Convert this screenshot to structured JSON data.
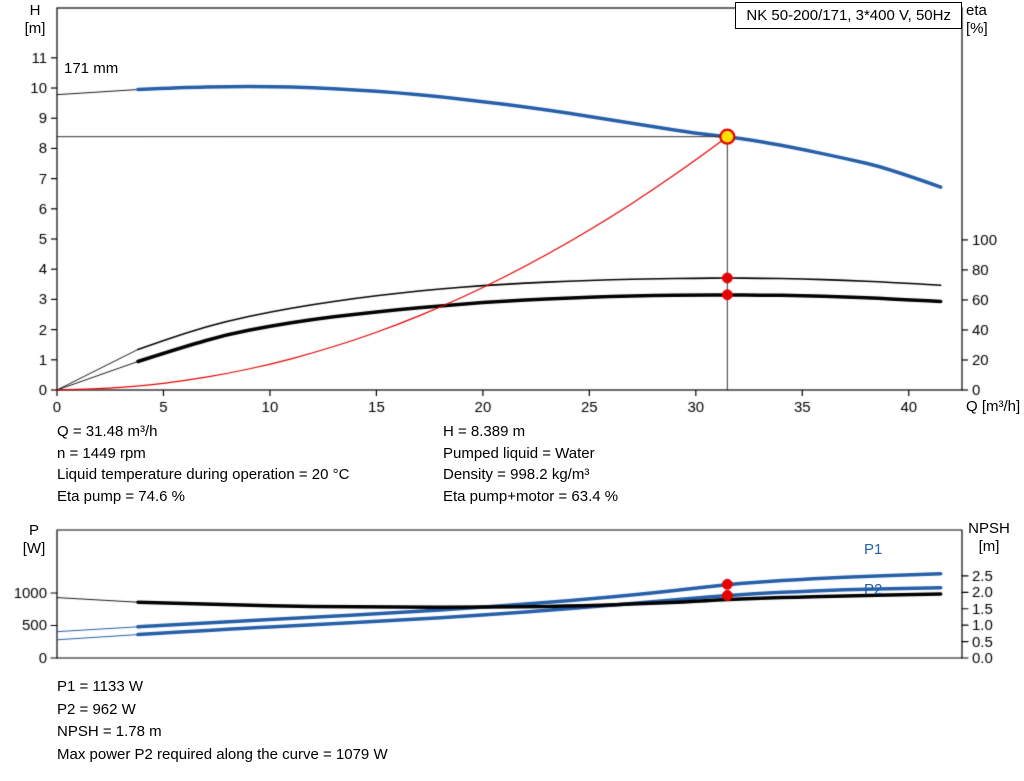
{
  "title_box": "NK 50-200/171, 3*400 V, 50Hz",
  "labels": {
    "h_axis_1": "H",
    "h_axis_2": "[m]",
    "eta_axis_1": "eta",
    "eta_axis_2": "[%]",
    "q_axis": "Q [m³/h]",
    "impeller": "171 mm",
    "p_axis_1": "P",
    "p_axis_2": "[W]",
    "npsh_axis_1": "NPSH",
    "npsh_axis_2": "[m]",
    "p1": "P1",
    "p2": "P2"
  },
  "info": {
    "left": [
      "Q = 31.48 m³/h",
      "n = 1449 rpm",
      "Liquid temperature during operation = 20 °C",
      "Eta pump = 74.6 %"
    ],
    "right": [
      "H = 8.389 m",
      "Pumped liquid = Water",
      "Density = 998.2 kg/m³",
      "Eta pump+motor = 63.4 %"
    ],
    "bottom": [
      "P1 = 1133 W",
      "P2 = 962 W",
      "NPSH = 1.78 m",
      "Max power P2 required along the curve = 1079 W"
    ]
  },
  "colors": {
    "curve_blue": "#255fa8",
    "marker_red": "#e60000",
    "marker_yellow": "#ffe000",
    "curve_black": "#000000",
    "crosshair": "#333333"
  },
  "chart_data": [
    {
      "id": "head-efficiency-chart",
      "type": "line",
      "x_axis": {
        "label": "Q [m³/h]",
        "range": [
          0,
          42.5
        ],
        "ticks": [
          "0",
          "5",
          "10",
          "15",
          "20",
          "25",
          "30",
          "35",
          "40"
        ]
      },
      "y_left": {
        "label": "H [m]",
        "range": [
          0,
          12.65
        ],
        "ticks": [
          "0",
          "1",
          "2",
          "3",
          "4",
          "5",
          "6",
          "7",
          "8",
          "9",
          "10",
          "11"
        ]
      },
      "y_right": {
        "label": "eta [%]",
        "range": [
          0,
          254.5
        ],
        "ticks": [
          "0",
          "20",
          "40",
          "60",
          "80",
          "100"
        ]
      },
      "series": [
        {
          "name": "pump-curve-extension",
          "axis": "left",
          "color": "#1a1a1a",
          "width": 1,
          "points": [
            [
              0,
              9.78
            ],
            [
              3.8,
              9.95
            ]
          ]
        },
        {
          "name": "pump-curve-171mm",
          "axis": "left",
          "color": "#255fa8",
          "width": 3.5,
          "points": [
            [
              3.8,
              9.95
            ],
            [
              6,
              10.02
            ],
            [
              8,
              10.05
            ],
            [
              10,
              10.05
            ],
            [
              12,
              10.01
            ],
            [
              14,
              9.94
            ],
            [
              16,
              9.84
            ],
            [
              18,
              9.71
            ],
            [
              20,
              9.55
            ],
            [
              22,
              9.37
            ],
            [
              24,
              9.17
            ],
            [
              26,
              8.95
            ],
            [
              28,
              8.72
            ],
            [
              30,
              8.5
            ],
            [
              31.48,
              8.389
            ],
            [
              33,
              8.24
            ],
            [
              35,
              7.97
            ],
            [
              37,
              7.67
            ],
            [
              39,
              7.35
            ],
            [
              41.5,
              6.72
            ]
          ]
        },
        {
          "name": "eta-pump-extension",
          "axis": "right",
          "color": "#1a1a1a",
          "width": 1,
          "points": [
            [
              0,
              0
            ],
            [
              3.8,
              27
            ]
          ]
        },
        {
          "name": "eta-pump-curve",
          "axis": "right",
          "color": "#000000",
          "width": 1.6,
          "points": [
            [
              3.8,
              27
            ],
            [
              6,
              38
            ],
            [
              8,
              46
            ],
            [
              10,
              52
            ],
            [
              12,
              57
            ],
            [
              14,
              61
            ],
            [
              16,
              64.5
            ],
            [
              18,
              67.5
            ],
            [
              20,
              69.5
            ],
            [
              22,
              71.2
            ],
            [
              24,
              72.5
            ],
            [
              26,
              73.5
            ],
            [
              28,
              74.1
            ],
            [
              30,
              74.5
            ],
            [
              31.48,
              74.6
            ],
            [
              33,
              74.5
            ],
            [
              35,
              74
            ],
            [
              37,
              73.1
            ],
            [
              39,
              71.9
            ],
            [
              41.5,
              69.8
            ]
          ]
        },
        {
          "name": "eta-pump-motor-extension",
          "axis": "right",
          "color": "#1a1a1a",
          "width": 1,
          "points": [
            [
              0,
              0
            ],
            [
              3.8,
              19
            ]
          ]
        },
        {
          "name": "eta-pump-motor-curve",
          "axis": "right",
          "color": "#000000",
          "width": 3.5,
          "points": [
            [
              3.8,
              19
            ],
            [
              6,
              29
            ],
            [
              8,
              37
            ],
            [
              10,
              42.5
            ],
            [
              12,
              47
            ],
            [
              14,
              50.5
            ],
            [
              16,
              53.5
            ],
            [
              18,
              56
            ],
            [
              20,
              58.2
            ],
            [
              22,
              59.9
            ],
            [
              24,
              61.2
            ],
            [
              26,
              62.3
            ],
            [
              28,
              63
            ],
            [
              30,
              63.3
            ],
            [
              31.48,
              63.4
            ],
            [
              33,
              63.3
            ],
            [
              35,
              62.9
            ],
            [
              37,
              62.1
            ],
            [
              39,
              60.9
            ],
            [
              41.5,
              59
            ]
          ]
        },
        {
          "name": "system-curve",
          "axis": "left",
          "color": "#e60000",
          "width": 1.2,
          "points": [
            [
              0,
              0
            ],
            [
              2,
              0.034
            ],
            [
              4,
              0.135
            ],
            [
              6,
              0.305
            ],
            [
              8,
              0.542
            ],
            [
              10,
              0.847
            ],
            [
              12,
              1.219
            ],
            [
              14,
              1.659
            ],
            [
              16,
              2.167
            ],
            [
              18,
              2.743
            ],
            [
              20,
              3.386
            ],
            [
              22,
              4.097
            ],
            [
              24,
              4.876
            ],
            [
              26,
              5.723
            ],
            [
              28,
              6.637
            ],
            [
              30,
              7.619
            ],
            [
              31.48,
              8.389
            ]
          ]
        },
        {
          "name": "duty-crosshair-vertical",
          "axis": "left",
          "color": "#333333",
          "width": 1,
          "points": [
            [
              31.48,
              0
            ],
            [
              31.48,
              8.389
            ]
          ]
        },
        {
          "name": "duty-crosshair-horizontal",
          "axis": "left",
          "color": "#333333",
          "width": 1,
          "points": [
            [
              0,
              8.389
            ],
            [
              31.48,
              8.389
            ]
          ]
        }
      ],
      "markers": [
        {
          "name": "duty-point",
          "axis": "left",
          "x": 31.48,
          "y": 8.389,
          "r": 7,
          "fill": "#ffe000",
          "stroke": "#e60000",
          "stroke_width": 2.2
        },
        {
          "name": "eta-pump-point",
          "axis": "right",
          "x": 31.48,
          "y": 74.6,
          "r": 5,
          "fill": "#e60000",
          "stroke": "#e60000",
          "stroke_width": 1
        },
        {
          "name": "eta-pump-motor-point",
          "axis": "right",
          "x": 31.48,
          "y": 63.4,
          "r": 5,
          "fill": "#e60000",
          "stroke": "#e60000",
          "stroke_width": 1
        }
      ]
    },
    {
      "id": "power-npsh-chart",
      "type": "line",
      "x_axis": {
        "label": "",
        "range": [
          0,
          42.5
        ],
        "ticks": []
      },
      "y_left": {
        "label": "P [W]",
        "range": [
          0,
          1969
        ],
        "ticks": [
          "0",
          "500",
          "1000"
        ]
      },
      "y_right": {
        "label": "NPSH [m]",
        "range": [
          0,
          3.9
        ],
        "ticks": [
          "0.0",
          "0.5",
          "1.0",
          "1.5",
          "2.0",
          "2.5"
        ]
      },
      "series": [
        {
          "name": "p1-extension",
          "axis": "left",
          "color": "#255fa8",
          "width": 1,
          "points": [
            [
              0,
              405
            ],
            [
              3.8,
              480
            ]
          ]
        },
        {
          "name": "p1-curve",
          "axis": "left",
          "color": "#255fa8",
          "width": 3.5,
          "points": [
            [
              3.8,
              480
            ],
            [
              8,
              560
            ],
            [
              12,
              625
            ],
            [
              16,
              700
            ],
            [
              20,
              780
            ],
            [
              24,
              880
            ],
            [
              28,
              1000
            ],
            [
              31.48,
              1133
            ],
            [
              34,
              1190
            ],
            [
              37,
              1245
            ],
            [
              40,
              1280
            ],
            [
              41.5,
              1295
            ]
          ]
        },
        {
          "name": "p2-extension",
          "axis": "left",
          "color": "#255fa8",
          "width": 1,
          "points": [
            [
              0,
              280
            ],
            [
              3.8,
              360
            ]
          ]
        },
        {
          "name": "p2-curve",
          "axis": "left",
          "color": "#255fa8",
          "width": 3.5,
          "points": [
            [
              3.8,
              360
            ],
            [
              8,
              445
            ],
            [
              12,
              510
            ],
            [
              16,
              580
            ],
            [
              20,
              660
            ],
            [
              24,
              755
            ],
            [
              28,
              865
            ],
            [
              31.48,
              962
            ],
            [
              34,
              1012
            ],
            [
              37,
              1050
            ],
            [
              40,
              1072
            ],
            [
              41.5,
              1079
            ]
          ]
        },
        {
          "name": "npsh-extension",
          "axis": "right",
          "color": "#1a1a1a",
          "width": 1,
          "points": [
            [
              0,
              1.84
            ],
            [
              3.8,
              1.7
            ]
          ]
        },
        {
          "name": "npsh-curve",
          "axis": "right",
          "color": "#000000",
          "width": 3.5,
          "points": [
            [
              3.8,
              1.7
            ],
            [
              8,
              1.62
            ],
            [
              12,
              1.57
            ],
            [
              16,
              1.55
            ],
            [
              20,
              1.55
            ],
            [
              24,
              1.58
            ],
            [
              27,
              1.64
            ],
            [
              29.5,
              1.71
            ],
            [
              31.48,
              1.78
            ],
            [
              34,
              1.84
            ],
            [
              37,
              1.89
            ],
            [
              40,
              1.93
            ],
            [
              41.5,
              1.95
            ]
          ]
        }
      ],
      "markers": [
        {
          "name": "p1-point",
          "axis": "left",
          "x": 31.48,
          "y": 1133,
          "r": 5,
          "fill": "#e60000",
          "stroke": "#e60000",
          "stroke_width": 1
        },
        {
          "name": "p2-point",
          "axis": "left",
          "x": 31.48,
          "y": 962,
          "r": 5,
          "fill": "#e60000",
          "stroke": "#e60000",
          "stroke_width": 1
        }
      ]
    }
  ]
}
